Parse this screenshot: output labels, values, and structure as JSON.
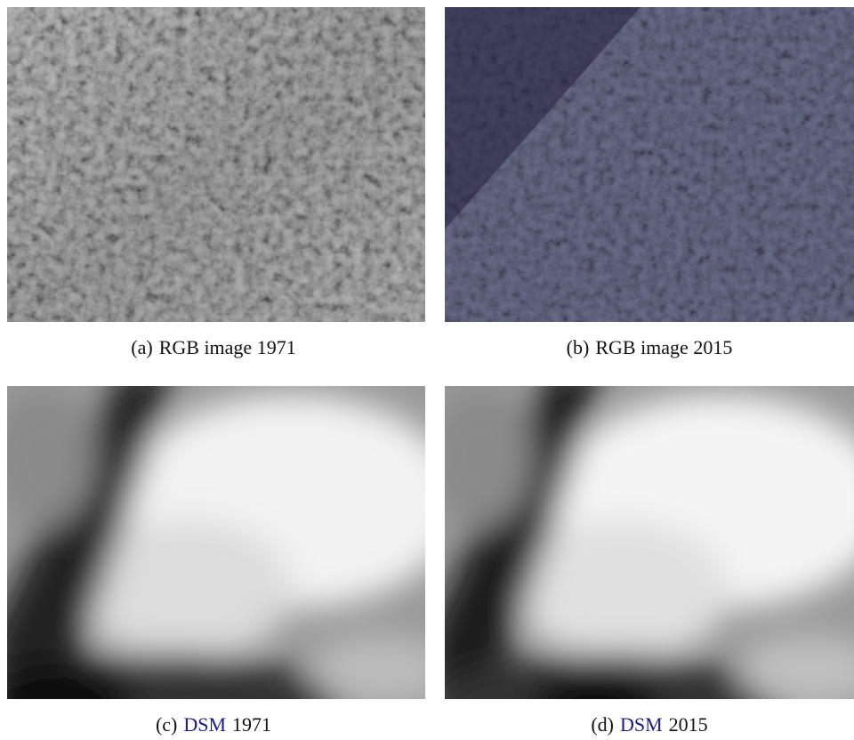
{
  "panels": [
    {
      "label": "(a)",
      "caption": "RGB image 1971"
    },
    {
      "label": "(b)",
      "caption": "RGB image 2015"
    },
    {
      "label": "(c)",
      "link": "DSM",
      "caption": "1971"
    },
    {
      "label": "(d)",
      "link": "DSM",
      "caption": "2015"
    }
  ]
}
